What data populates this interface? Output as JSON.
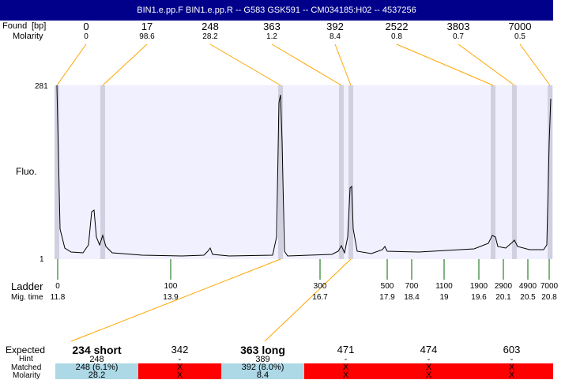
{
  "header": {
    "title": "BIN1.e.pp.F  BIN1.e.pp.R -- G583 GSK591 -- CM034185:H02 -- 4537256"
  },
  "labels": {
    "found": "Found",
    "size": "[bp]",
    "molarity": "Molarity",
    "ymax": "281",
    "ymin": "1",
    "fluo": "Fluo.",
    "ladder": "Ladder",
    "migtime": "Mig. time",
    "expected": "Expected",
    "hint": "Hint",
    "matched": "Matched",
    "molarity2": "Molarity"
  },
  "peaks": [
    {
      "size": "0",
      "molarity": "0"
    },
    {
      "size": "17",
      "molarity": "98.6"
    },
    {
      "size": "248",
      "molarity": "28.2"
    },
    {
      "size": "363",
      "molarity": "1.2"
    },
    {
      "size": "392",
      "molarity": "8.4"
    },
    {
      "size": "2522",
      "molarity": "0.8"
    },
    {
      "size": "3803",
      "molarity": "0.7"
    },
    {
      "size": "7000",
      "molarity": "0.5"
    }
  ],
  "ladder": [
    {
      "size": "0",
      "time": "11.8"
    },
    {
      "size": "100",
      "time": "13.9"
    },
    {
      "size": "300",
      "time": "16.7"
    },
    {
      "size": "500",
      "time": "17.9"
    },
    {
      "size": "700",
      "time": "18.4"
    },
    {
      "size": "1100",
      "time": "19"
    },
    {
      "size": "1900",
      "time": "19.6"
    },
    {
      "size": "2900",
      "time": "20.1"
    },
    {
      "size": "4900",
      "time": "20.5"
    },
    {
      "size": "7000",
      "time": "20.8"
    }
  ],
  "expected": [
    {
      "label": "234 short",
      "bold": true,
      "hint": "248",
      "matched": "248 (6.1%)",
      "molarity": "28.2",
      "status": "match"
    },
    {
      "label": "342",
      "bold": false,
      "hint": "-",
      "matched": "X",
      "molarity": "X",
      "status": "missing"
    },
    {
      "label": "363 long",
      "bold": true,
      "hint": "389",
      "matched": "392 (8.0%)",
      "molarity": "8.4",
      "status": "match"
    },
    {
      "label": "471",
      "bold": false,
      "hint": "-",
      "matched": "X",
      "molarity": "X",
      "status": "missing"
    },
    {
      "label": "474",
      "bold": false,
      "hint": "-",
      "matched": "X",
      "molarity": "X",
      "status": "missing"
    },
    {
      "label": "603",
      "bold": false,
      "hint": "-",
      "matched": "X",
      "molarity": "X",
      "status": "missing"
    }
  ],
  "colors": {
    "header": "#00008b",
    "plot_bg": "#f0f0ff",
    "band": "#d0d0e0",
    "connector": "#ffa500",
    "ladder_tick": "#006400",
    "match": "#add8e6",
    "missing": "#ff0000"
  }
}
